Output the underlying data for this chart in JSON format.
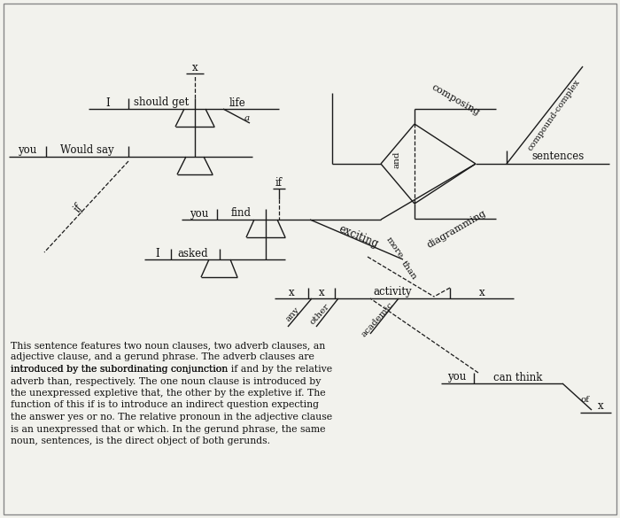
{
  "bg_color": "#f2f2ed",
  "line_color": "#1a1a1a",
  "text_color": "#111111",
  "font_size": 8.5,
  "description": [
    "This sentence features two noun clauses, two adverb clauses, an",
    "adjective clause, and a gerund phrase. The adverb clauses are",
    "introduced by the subordinating conjunction if and by the relative",
    "adverb than, respectively. The one noun clause is introduced by",
    "the unexpressed expletive that, the other by the expletive if. The",
    "function of this if is to introduce an indirect question expecting",
    "the answer yes or no. The relative pronoun in the adjective clause",
    "is an unexpressed that or which. In the gerund phrase, the same",
    "noun, sentences, is the direct object of both gerunds."
  ]
}
